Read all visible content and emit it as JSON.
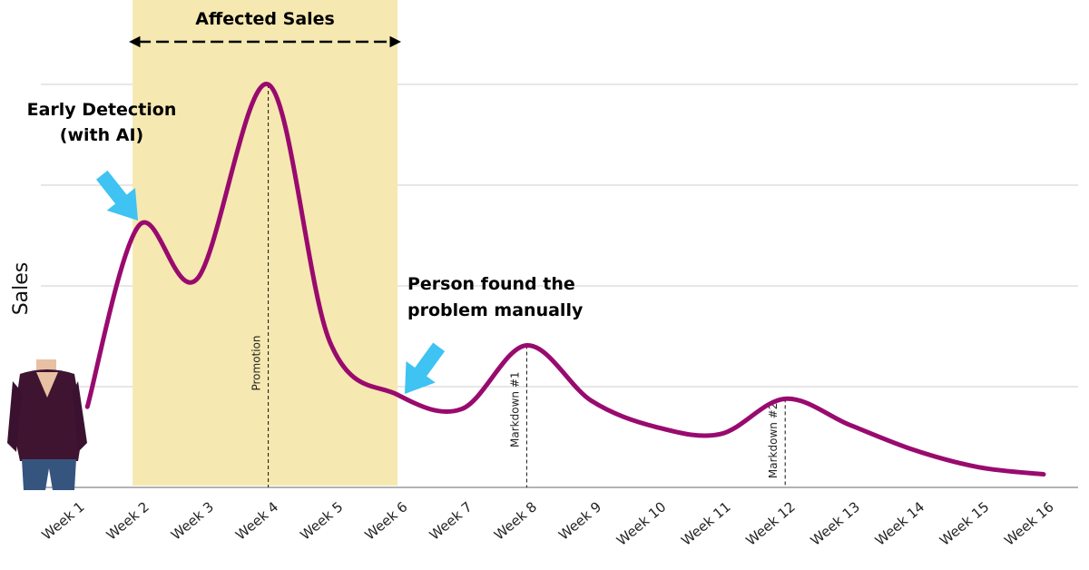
{
  "chart_data": {
    "type": "line",
    "title": "",
    "xlabel": "",
    "ylabel": "Sales",
    "categories": [
      "Week 1",
      "Week 2",
      "Week 3",
      "Week 4",
      "Week 5",
      "Week 6",
      "Week 7",
      "Week 8",
      "Week 9",
      "Week 10",
      "Week 11",
      "Week 12",
      "Week 13",
      "Week 14",
      "Week 15",
      "Week 16"
    ],
    "x": [
      1.2,
      2,
      2.9,
      4,
      4.95,
      6,
      7,
      8,
      9,
      10,
      11,
      12,
      13,
      14,
      15,
      16
    ],
    "values": [
      0.8,
      2.6,
      2.07,
      4.0,
      1.45,
      0.92,
      0.78,
      1.41,
      0.86,
      0.6,
      0.53,
      0.88,
      0.62,
      0.37,
      0.2,
      0.13
    ],
    "ylim": [
      0,
      4.3
    ],
    "grid": true,
    "series_color": "#990a6e",
    "shaded_region": {
      "label": "Affected Sales",
      "x_range": [
        1.9,
        6
      ],
      "color": "#f6e8b1"
    },
    "markers": [
      {
        "x": 4,
        "label": "Promotion"
      },
      {
        "x": 8,
        "label": "Markdown #1"
      },
      {
        "x": 12,
        "label": "Markdown #2"
      }
    ],
    "annotations": [
      {
        "lines": [
          "Early Detection",
          "(with AI)"
        ],
        "points_to_x": 2
      },
      {
        "lines": [
          "Person found the",
          "problem manually"
        ],
        "points_to_x": 6
      }
    ],
    "arrow_color": "#3ec3f2"
  },
  "icons": {
    "person": "person-icon"
  }
}
